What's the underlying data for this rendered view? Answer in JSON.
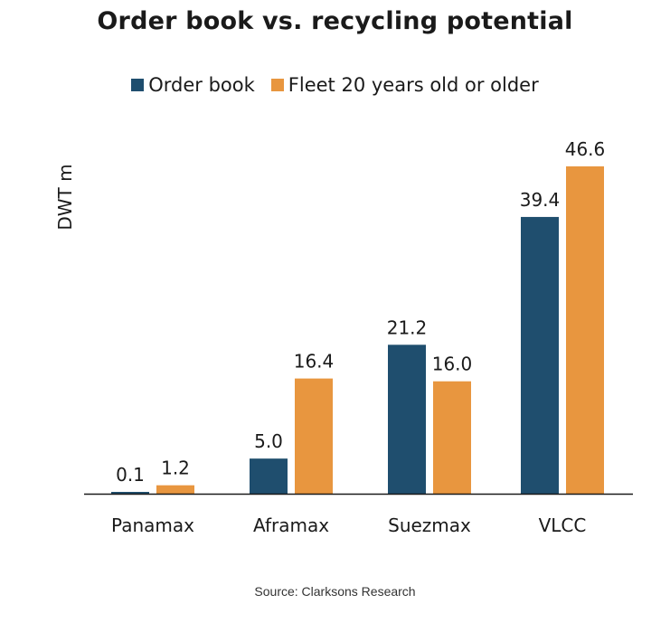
{
  "chart_data": {
    "type": "bar",
    "title": "Order book vs. recycling potential",
    "xlabel": "",
    "ylabel": "DWT m",
    "categories": [
      "Panamax",
      "Aframax",
      "Suezmax",
      "VLCC"
    ],
    "series": [
      {
        "name": "Order book",
        "color": "#1f4e6e",
        "values": [
          0.1,
          5.0,
          21.2,
          39.4
        ],
        "labels": [
          "0.1",
          "5.0",
          "21.2",
          "39.4"
        ]
      },
      {
        "name": "Fleet 20 years old or older",
        "color": "#e8963f",
        "values": [
          1.2,
          16.4,
          16.0,
          46.6
        ],
        "labels": [
          "1.2",
          "16.4",
          "16.0",
          "46.6"
        ]
      }
    ],
    "ylim": [
      0,
      50
    ],
    "grid": false,
    "legend": "top-center",
    "source": "Source: Clarksons Research"
  }
}
